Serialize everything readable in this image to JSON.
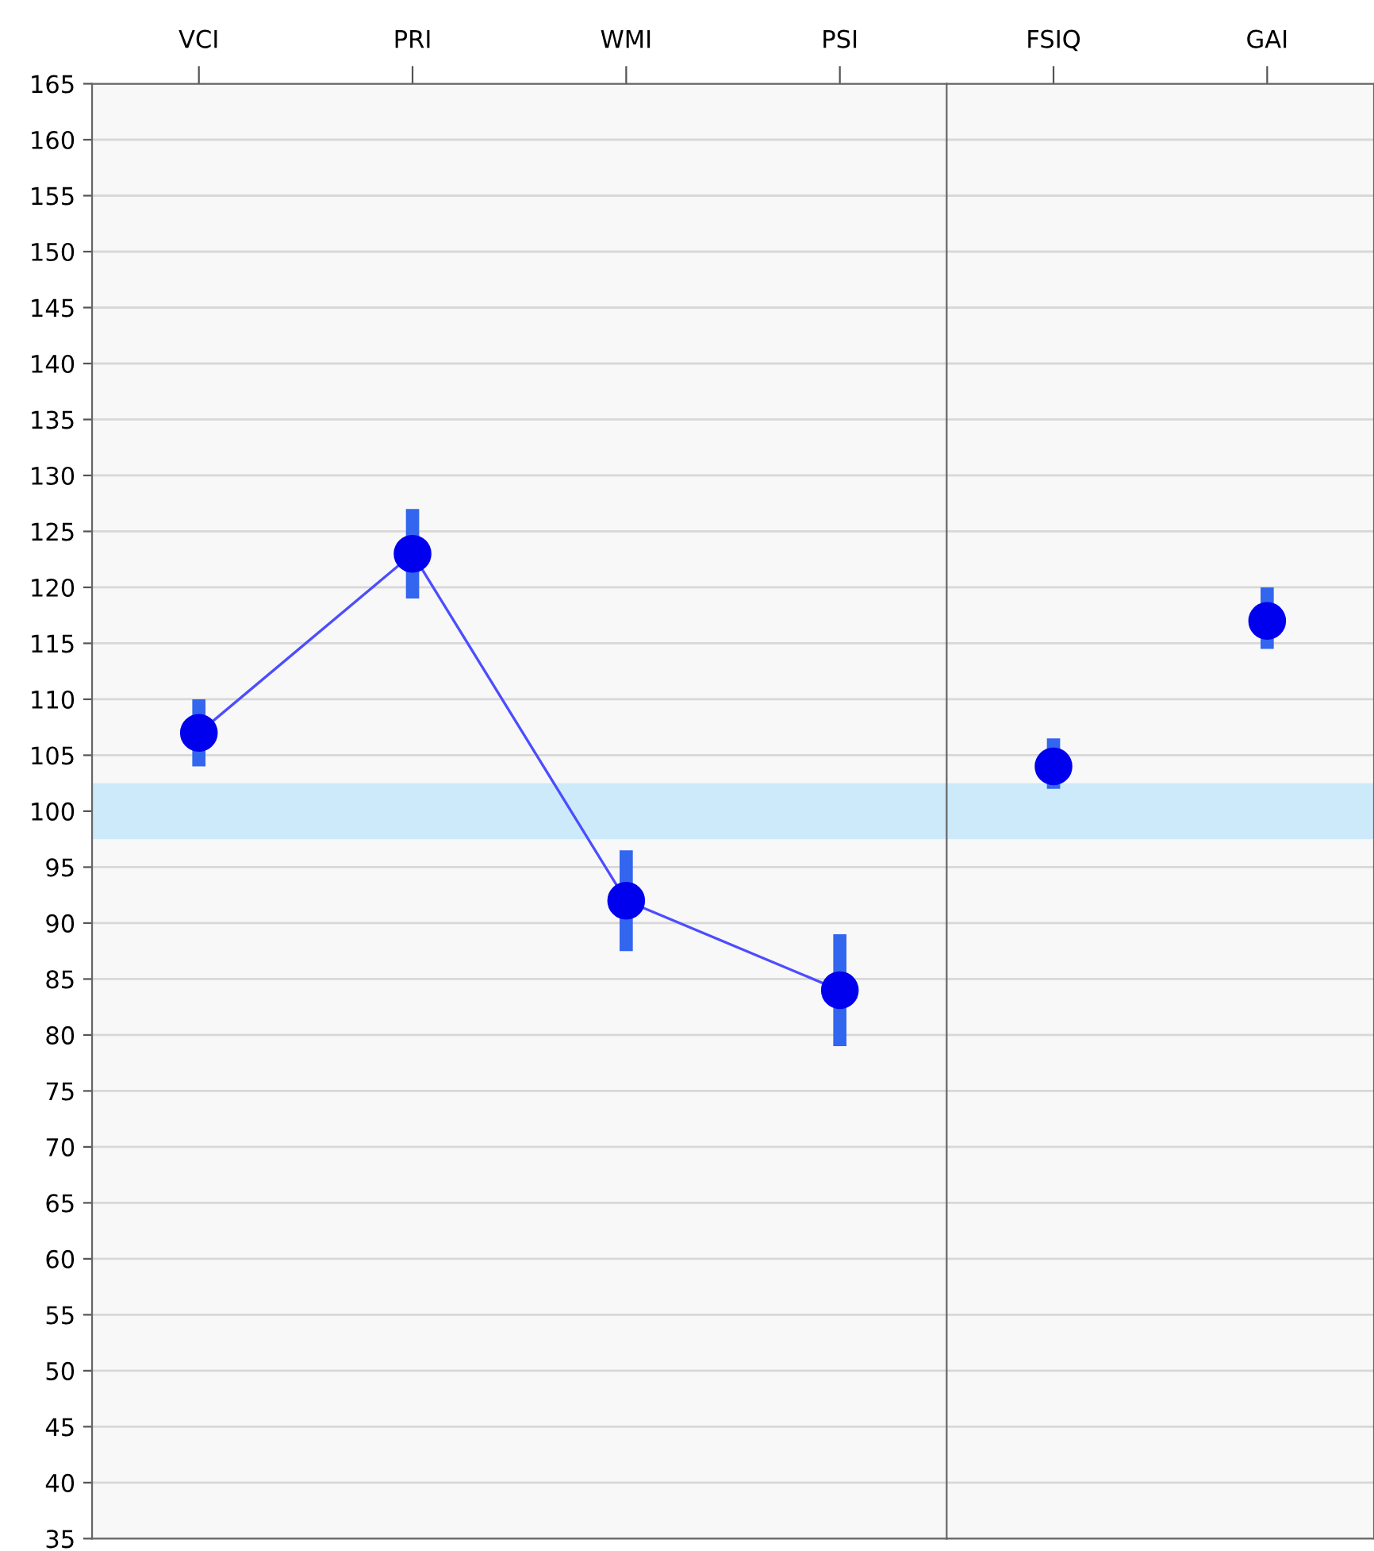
{
  "chart_data": [
    {
      "type": "line",
      "categories": [
        "VCI",
        "PRI",
        "WMI",
        "PSI"
      ],
      "series": [
        {
          "color": "#0000ee",
          "values": [
            107,
            123,
            92,
            84
          ],
          "errors": [
            [
              104,
              110
            ],
            [
              119,
              127
            ],
            [
              87.5,
              96.5
            ],
            [
              79,
              89
            ]
          ]
        }
      ],
      "ylim": [
        35,
        165
      ],
      "yticks": [
        35,
        40,
        45,
        50,
        55,
        60,
        65,
        70,
        75,
        80,
        85,
        90,
        95,
        100,
        105,
        110,
        115,
        120,
        125,
        130,
        135,
        140,
        145,
        150,
        155,
        160,
        165
      ],
      "bands": [
        {
          "axis": "y",
          "from": 97.5,
          "to": 102.5,
          "color": "#cdeafb"
        }
      ],
      "grid": "y",
      "marker": "circle",
      "line_style": "solid"
    },
    {
      "type": "scatter",
      "categories": [
        "FSIQ",
        "GAI"
      ],
      "series": [
        {
          "color": "#0000ee",
          "values": [
            104,
            117
          ],
          "errors": [
            [
              102,
              106.5
            ],
            [
              114.5,
              120
            ]
          ]
        }
      ],
      "ylim": [
        35,
        165
      ],
      "yticks": [
        35,
        40,
        45,
        50,
        55,
        60,
        65,
        70,
        75,
        80,
        85,
        90,
        95,
        100,
        105,
        110,
        115,
        120,
        125,
        130,
        135,
        140,
        145,
        150,
        155,
        160,
        165
      ],
      "bands": [
        {
          "axis": "y",
          "from": 97.5,
          "to": 102.5,
          "color": "#cdeafb"
        }
      ],
      "grid": "y",
      "marker": "circle",
      "tick_labels": "x"
    }
  ]
}
